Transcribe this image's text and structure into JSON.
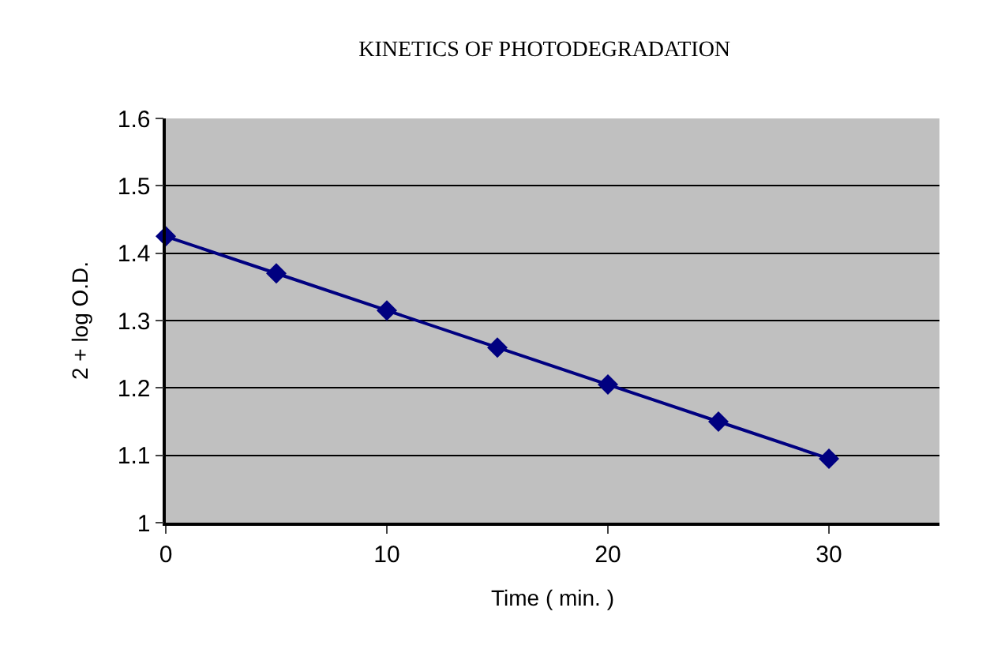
{
  "chart_data": {
    "type": "line",
    "title": "KINETICS OF PHOTODEGRADATION",
    "xlabel": "Time ( min. )",
    "ylabel": "2 + log O.D.",
    "x": [
      0,
      5,
      10,
      15,
      20,
      25,
      30
    ],
    "series": [
      {
        "color": "#000080",
        "values": [
          1.425,
          1.37,
          1.315,
          1.26,
          1.205,
          1.15,
          1.095
        ]
      }
    ],
    "xlim": [
      0,
      35
    ],
    "xticks": [
      0,
      10,
      20,
      30
    ],
    "ylim": [
      1,
      1.6
    ],
    "yticks": [
      1,
      1.1,
      1.2,
      1.3,
      1.4,
      1.5,
      1.6
    ],
    "grid": "y",
    "marker": "diamond",
    "line_style": "solid",
    "legend": false
  }
}
